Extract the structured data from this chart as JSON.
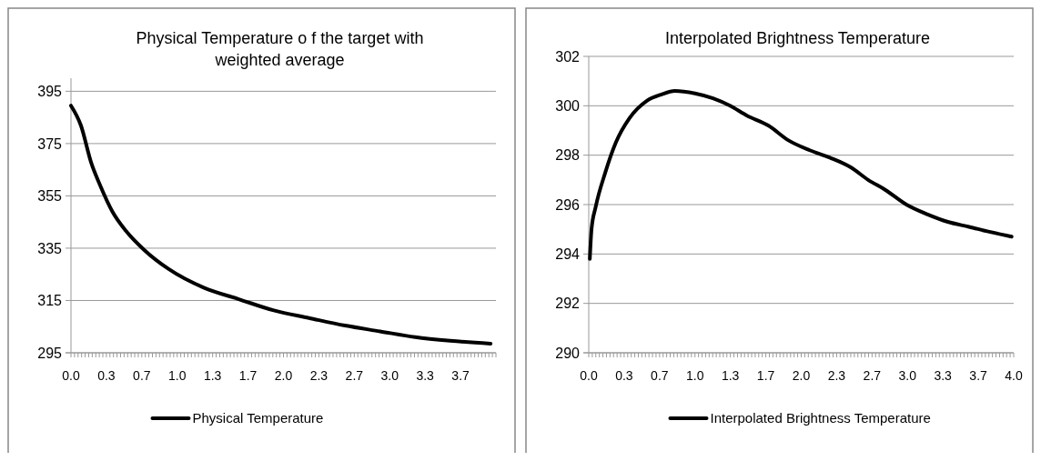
{
  "chart_data": [
    {
      "type": "line",
      "title": "Physical Temperature o f the target with weighted average",
      "x": [
        0,
        0.093,
        0.19,
        0.275,
        0.39,
        0.52,
        0.69,
        0.92,
        1.25,
        1.58,
        1.91,
        2.24,
        2.58,
        2.91,
        3.24,
        3.57,
        3.95
      ],
      "series": [
        {
          "name": "Physical Temperature",
          "color": "#000000",
          "values": [
            389.5,
            382,
            367.7,
            359,
            349,
            341.5,
            334.3,
            327,
            319.9,
            315.5,
            311.2,
            308.3,
            305.4,
            303.2,
            301,
            299.6,
            298.5
          ]
        }
      ],
      "xlim": [
        0,
        4
      ],
      "xticks": [
        {
          "value": 0,
          "label": "0.0"
        },
        {
          "value": 0.3333,
          "label": "0.3"
        },
        {
          "value": 0.6667,
          "label": "0.7"
        },
        {
          "value": 1,
          "label": "1.0"
        },
        {
          "value": 1.3333,
          "label": "1.3"
        },
        {
          "value": 1.6667,
          "label": "1.7"
        },
        {
          "value": 2,
          "label": "2.0"
        },
        {
          "value": 2.3333,
          "label": "2.3"
        },
        {
          "value": 2.6667,
          "label": "2.7"
        },
        {
          "value": 3,
          "label": "3.0"
        },
        {
          "value": 3.3333,
          "label": "3.3"
        },
        {
          "value": 3.6667,
          "label": "3.7"
        }
      ],
      "ylim": [
        295,
        400
      ],
      "yticks": [
        295,
        315,
        335,
        355,
        375,
        395
      ],
      "grid": "y",
      "legend": "bottom",
      "marker": "none",
      "line_style": "solid"
    },
    {
      "type": "line",
      "title": "Interpolated Brightness Temperature",
      "x": [
        0.01,
        0.026,
        0.065,
        0.156,
        0.254,
        0.384,
        0.547,
        0.68,
        0.81,
        1.0,
        1.17,
        1.33,
        1.49,
        1.69,
        1.88,
        2.08,
        2.27,
        2.47,
        2.63,
        2.79,
        2.99,
        3.19,
        3.38,
        3.58,
        3.77,
        3.98
      ],
      "series": [
        {
          "name": "Interpolated Brightness Temperature",
          "color": "#000000",
          "values": [
            293.8,
            295.0,
            295.9,
            297.3,
            298.5,
            299.5,
            300.2,
            300.45,
            300.6,
            300.5,
            300.3,
            300.0,
            299.6,
            299.2,
            298.6,
            298.2,
            297.9,
            297.5,
            297.0,
            296.6,
            296.0,
            295.6,
            295.3,
            295.1,
            294.9,
            294.7
          ]
        }
      ],
      "xlim": [
        0,
        4
      ],
      "xticks": [
        {
          "value": 0,
          "label": "0.0"
        },
        {
          "value": 0.3333,
          "label": "0.3"
        },
        {
          "value": 0.6667,
          "label": "0.7"
        },
        {
          "value": 1,
          "label": "1.0"
        },
        {
          "value": 1.3333,
          "label": "1.3"
        },
        {
          "value": 1.6667,
          "label": "1.7"
        },
        {
          "value": 2,
          "label": "2.0"
        },
        {
          "value": 2.3333,
          "label": "2.3"
        },
        {
          "value": 2.6667,
          "label": "2.7"
        },
        {
          "value": 3,
          "label": "3.0"
        },
        {
          "value": 3.3333,
          "label": "3.3"
        },
        {
          "value": 3.6667,
          "label": "3.7"
        },
        {
          "value": 4,
          "label": "4.0"
        }
      ],
      "ylim": [
        290,
        302
      ],
      "yticks": [
        290,
        292,
        294,
        296,
        298,
        300,
        302
      ],
      "grid": "y",
      "legend": "bottom",
      "marker": "none",
      "line_style": "solid"
    }
  ]
}
